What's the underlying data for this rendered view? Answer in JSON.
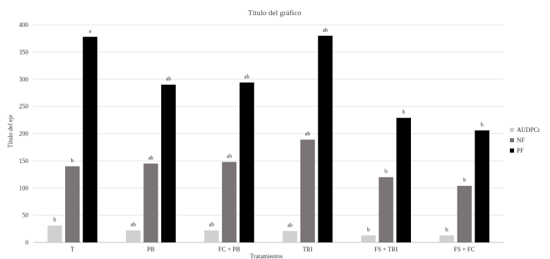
{
  "chart_data": {
    "type": "bar",
    "title": "Título del gráfico",
    "xlabel": "Tratamientos",
    "ylabel": "Título del eje",
    "ylim": [
      0,
      400
    ],
    "yticks": [
      0,
      50,
      100,
      150,
      200,
      250,
      300,
      350,
      400
    ],
    "grid": true,
    "legend": "right",
    "categories": [
      "T",
      "PB",
      "FC + PB",
      "TRI",
      "FS + TRI",
      "FS + FC"
    ],
    "series": [
      {
        "name": "AUDPCr",
        "color": "#d0d0d0",
        "values": [
          31,
          22,
          22,
          21,
          13,
          13
        ],
        "labels": [
          "b",
          "ab",
          "ab",
          "ab",
          "b",
          "b"
        ]
      },
      {
        "name": "NF",
        "color": "#7a7474",
        "values": [
          140,
          145,
          148,
          189,
          120,
          104
        ],
        "labels": [
          "b",
          "ab",
          "ab",
          "ab",
          "b",
          "b"
        ]
      },
      {
        "name": "PF",
        "color": "#000000",
        "values": [
          378,
          290,
          294,
          380,
          229,
          206
        ],
        "labels": [
          "a",
          "ab",
          "ab",
          "ab",
          "b",
          "b"
        ]
      }
    ]
  }
}
